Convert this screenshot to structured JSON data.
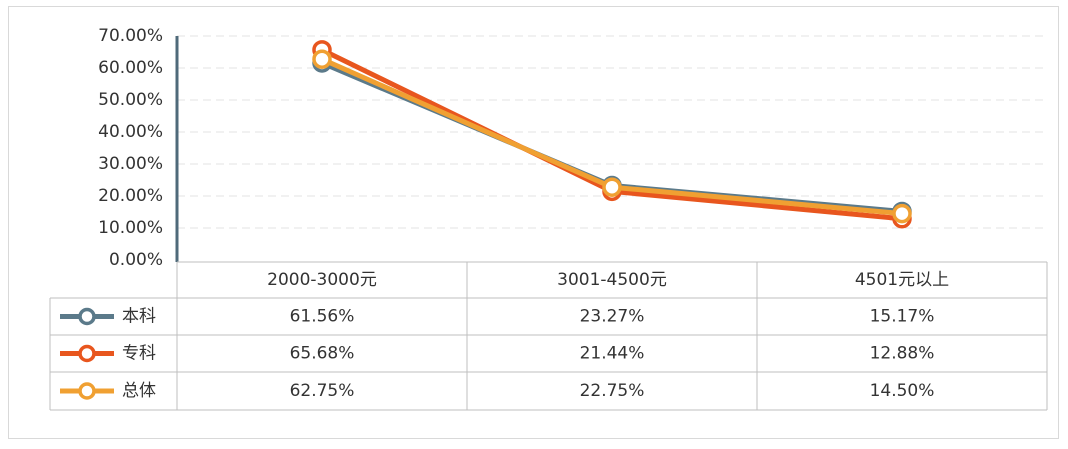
{
  "chart_data": {
    "type": "line",
    "categories": [
      "2000-3000元",
      "3001-4500元",
      "4501元以上"
    ],
    "series": [
      {
        "name": "本科",
        "color": "#5b7a8a",
        "values": [
          61.56,
          23.27,
          15.17
        ],
        "value_labels": [
          "61.56%",
          "23.27%",
          "15.17%"
        ]
      },
      {
        "name": "专科",
        "color": "#e8561e",
        "values": [
          65.68,
          21.44,
          12.88
        ],
        "value_labels": [
          "65.68%",
          "21.44%",
          "12.88%"
        ]
      },
      {
        "name": "总体",
        "color": "#f0a032",
        "values": [
          62.75,
          22.75,
          14.5
        ],
        "value_labels": [
          "62.75%",
          "22.75%",
          "14.50%"
        ]
      }
    ],
    "ylim": [
      0,
      70
    ],
    "yticks": [
      {
        "value": 0,
        "label": "0.00%"
      },
      {
        "value": 10,
        "label": "10.00%"
      },
      {
        "value": 20,
        "label": "20.00%"
      },
      {
        "value": 30,
        "label": "30.00%"
      },
      {
        "value": 40,
        "label": "40.00%"
      },
      {
        "value": 50,
        "label": "50.00%"
      },
      {
        "value": 60,
        "label": "60.00%"
      },
      {
        "value": 70,
        "label": "70.00%"
      }
    ],
    "grid": true
  }
}
